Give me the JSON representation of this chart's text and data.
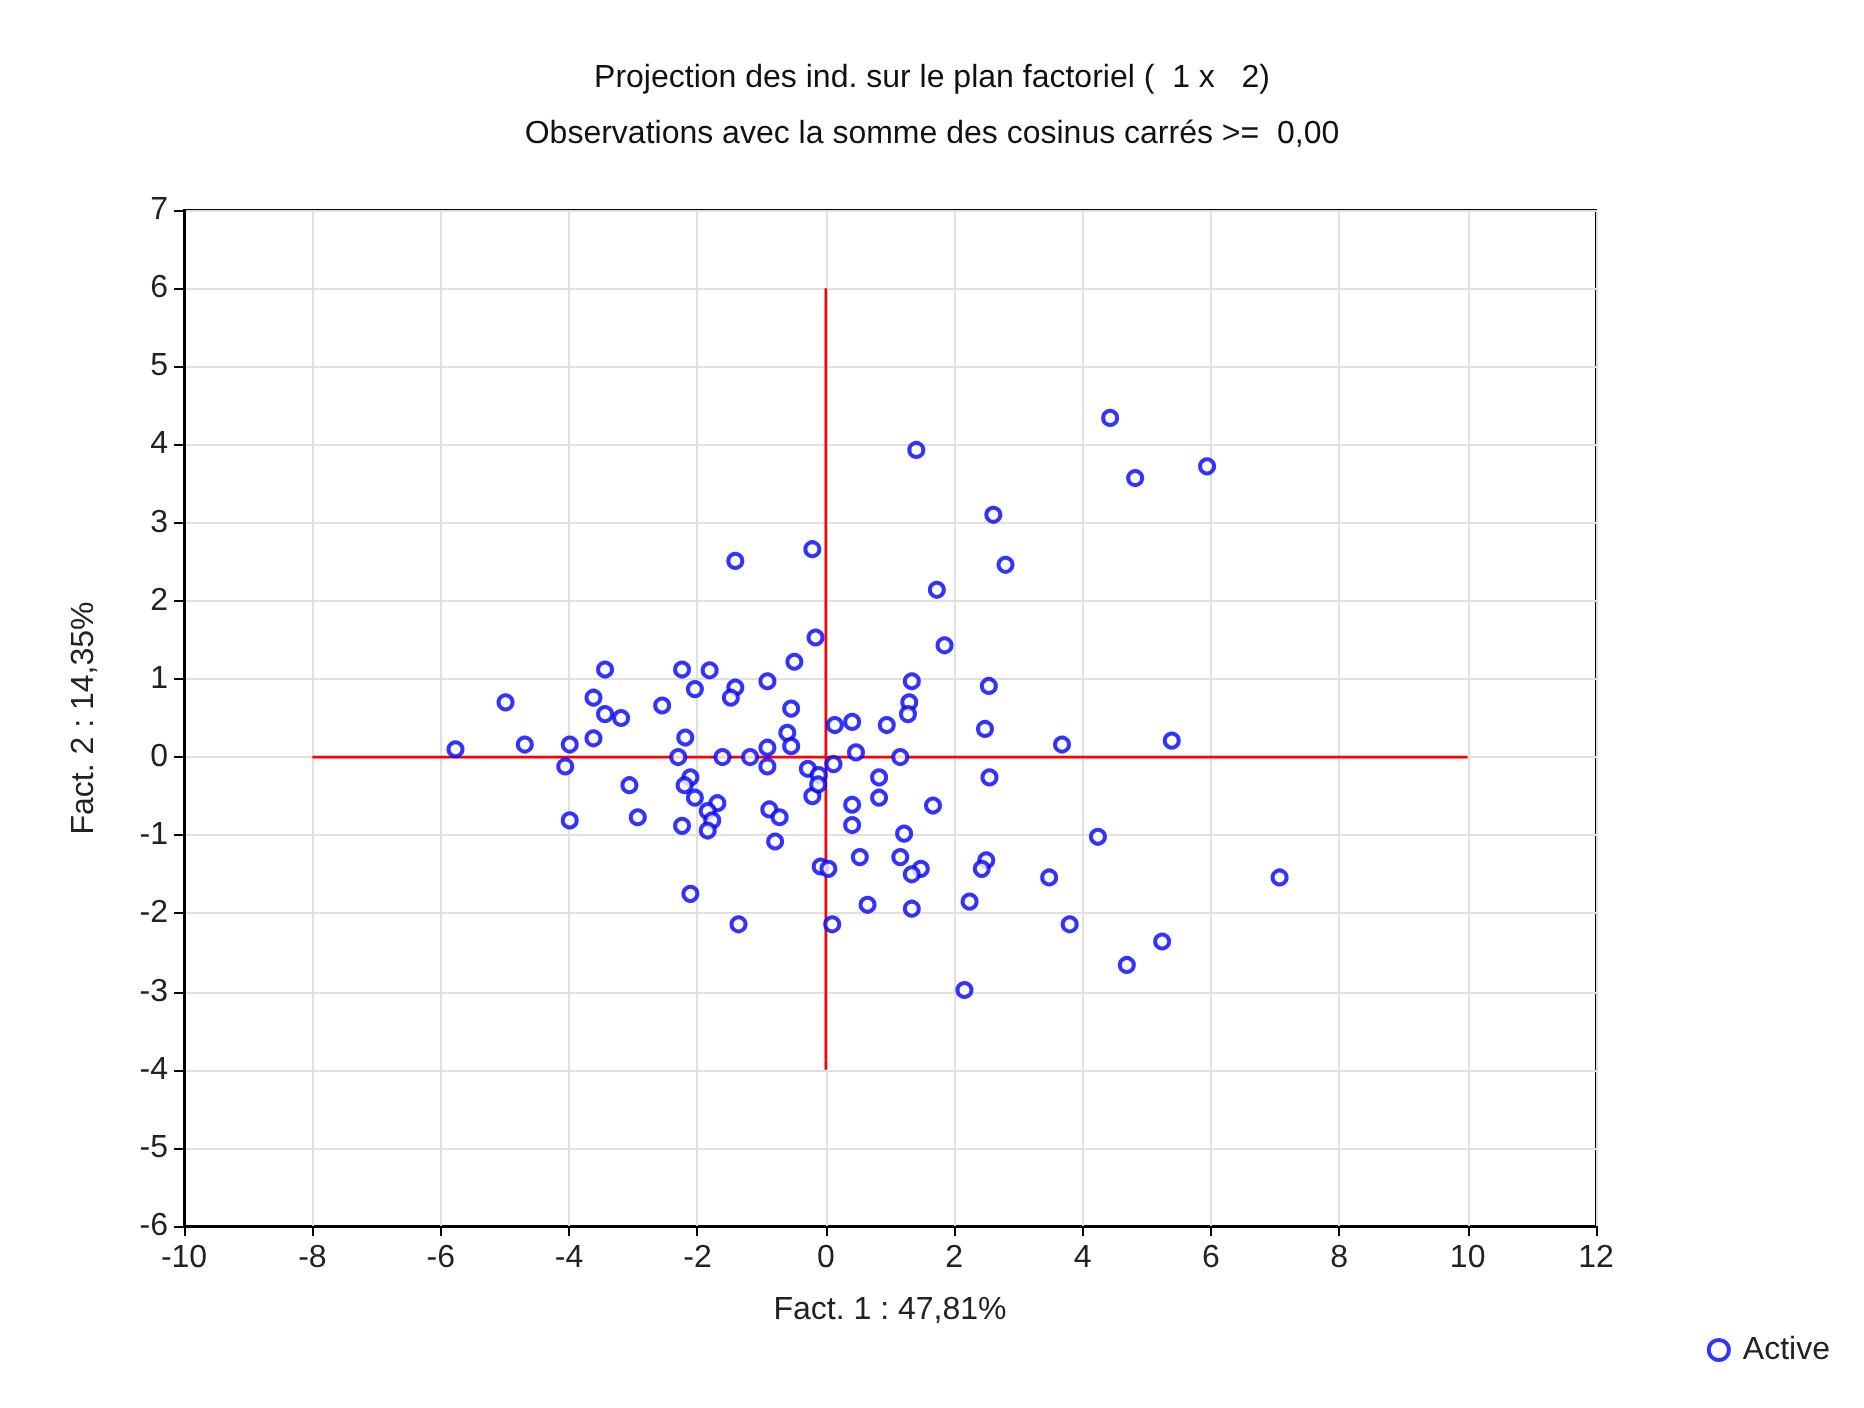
{
  "chart_data": {
    "type": "scatter",
    "title": "Projection des ind. sur le plan factoriel (  1 x   2)",
    "subtitle": "Observations avec la somme des cosinus carrés >=  0,00",
    "xlabel": "Fact. 1 : 47,81%",
    "ylabel": "Fact. 2 : 14,35%",
    "xlim": [
      -10,
      12
    ],
    "xticks": [
      -10,
      -8,
      -6,
      -4,
      -2,
      0,
      2,
      4,
      6,
      8,
      10,
      12
    ],
    "ylim": [
      -6,
      7
    ],
    "yticks": [
      -6,
      -5,
      -4,
      -3,
      -2,
      -1,
      0,
      1,
      2,
      3,
      4,
      5,
      6,
      7
    ],
    "grid": true,
    "legend": "bottom right",
    "series": [
      {
        "name": "Active",
        "color": "#0000ff",
        "marker": "circle",
        "x": [
          -5.77,
          -4.99,
          -4.69,
          -3.99,
          -4.06,
          -3.99,
          -3.62,
          -3.44,
          -3.44,
          -3.19,
          -3.62,
          -3.06,
          -2.93,
          -2.55,
          -2.24,
          -2.04,
          -1.81,
          -1.41,
          -1.41,
          -1.48,
          -0.91,
          -0.49,
          -0.21,
          -0.16,
          -0.54,
          -0.6,
          -0.54,
          -0.91,
          -2.19,
          -2.3,
          -1.61,
          -1.18,
          -0.91,
          -2.11,
          -2.2,
          -2.04,
          -1.69,
          -1.84,
          -1.77,
          -1.84,
          -2.24,
          -0.88,
          -0.72,
          -0.79,
          -2.11,
          -1.36,
          -0.28,
          -0.11,
          -0.21,
          -0.12,
          -0.08,
          0.12,
          0.14,
          1.41,
          4.43,
          4.82,
          5.94,
          2.61,
          2.8,
          1.73,
          1.85,
          1.34,
          1.3,
          1.28,
          2.54,
          2.48,
          3.68,
          5.39,
          0.41,
          0.95,
          0.47,
          1.16,
          0.83,
          0.83,
          2.55,
          0.41,
          0.41,
          1.67,
          1.22,
          4.24,
          1.16,
          0.53,
          1.48,
          1.34,
          2.5,
          2.43,
          3.48,
          0.04,
          0.65,
          1.34,
          2.24,
          3.8,
          0.1,
          5.24,
          4.69,
          2.16,
          7.07
        ],
        "values": [
          0.1,
          0.7,
          0.16,
          0.16,
          -0.12,
          -0.81,
          0.76,
          0.55,
          1.12,
          0.5,
          0.24,
          -0.36,
          -0.77,
          0.66,
          1.12,
          0.87,
          1.11,
          2.51,
          0.89,
          0.76,
          0.97,
          1.22,
          2.66,
          1.53,
          0.62,
          0.31,
          0.14,
          0.12,
          0.25,
          0.0,
          0.0,
          0.0,
          -0.12,
          -0.26,
          -0.36,
          -0.52,
          -0.59,
          -0.69,
          -0.81,
          -0.94,
          -0.88,
          -0.67,
          -0.77,
          -1.08,
          -1.75,
          -2.14,
          -0.15,
          -0.23,
          -0.5,
          -0.35,
          -1.4,
          -0.09,
          0.41,
          3.93,
          4.34,
          3.57,
          3.72,
          3.1,
          2.46,
          2.14,
          1.43,
          0.97,
          0.7,
          0.55,
          0.91,
          0.36,
          0.16,
          0.21,
          0.45,
          0.41,
          0.06,
          0.0,
          -0.26,
          -0.52,
          -0.26,
          -0.61,
          -0.87,
          -0.62,
          -0.98,
          -1.02,
          -1.28,
          -1.28,
          -1.43,
          -1.5,
          -1.32,
          -1.43,
          -1.54,
          -1.43,
          -1.89,
          -1.94,
          -1.85,
          -2.14,
          -2.14,
          -2.36,
          -2.66,
          -2.98,
          -1.54
        ]
      },
      {
        "type": "line",
        "color": "#ff0000",
        "marker": "none",
        "x": [
          -8,
          10
        ],
        "values": [
          0,
          0
        ]
      },
      {
        "type": "line",
        "color": "#ff0000",
        "marker": "none",
        "x": [
          0,
          0
        ],
        "values": [
          -4,
          6
        ]
      }
    ]
  }
}
